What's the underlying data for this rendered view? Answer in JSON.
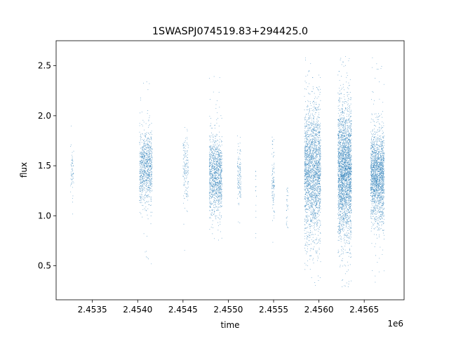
{
  "chart_data": {
    "type": "scatter",
    "title": "1SWASPJ074519.83+294425.0",
    "xlabel": "time",
    "ylabel": "flux",
    "x_offset_label": "1e6",
    "xlim": [
      2453100,
      2456940
    ],
    "ylim": [
      0.16,
      2.75
    ],
    "x_ticks": [
      2453500,
      2454000,
      2454500,
      2455000,
      2455500,
      2456000,
      2456500
    ],
    "x_tick_labels": [
      "2.4535",
      "2.4540",
      "2.4545",
      "2.4550",
      "2.4555",
      "2.4560",
      "2.4565"
    ],
    "y_ticks": [
      0.5,
      1.0,
      1.5,
      2.0,
      2.5
    ],
    "y_tick_labels": [
      "0.5",
      "1.0",
      "1.5",
      "2.0",
      "2.5"
    ],
    "grid": false,
    "marker_color": "#1f77b4",
    "seasons": [
      {
        "x_start": 2453260,
        "x_end": 2453295,
        "center": 1.45,
        "spread": 0.15,
        "min": 0.5,
        "max": 1.97,
        "density": 60
      },
      {
        "x_start": 2454020,
        "x_end": 2454160,
        "center": 1.48,
        "spread": 0.18,
        "min": 0.4,
        "max": 2.45,
        "density": 900
      },
      {
        "x_start": 2454500,
        "x_end": 2454560,
        "center": 1.45,
        "spread": 0.2,
        "min": 0.37,
        "max": 2.48,
        "density": 150
      },
      {
        "x_start": 2454790,
        "x_end": 2454930,
        "center": 1.4,
        "spread": 0.2,
        "min": 0.75,
        "max": 2.55,
        "density": 1100
      },
      {
        "x_start": 2455100,
        "x_end": 2455140,
        "center": 1.42,
        "spread": 0.15,
        "min": 0.85,
        "max": 1.83,
        "density": 120
      },
      {
        "x_start": 2455300,
        "x_end": 2455310,
        "center": 1.2,
        "spread": 0.2,
        "min": 0.7,
        "max": 1.45,
        "density": 15
      },
      {
        "x_start": 2455480,
        "x_end": 2455510,
        "center": 1.3,
        "spread": 0.2,
        "min": 0.55,
        "max": 1.9,
        "density": 100
      },
      {
        "x_start": 2455640,
        "x_end": 2455660,
        "center": 1.1,
        "spread": 0.15,
        "min": 0.85,
        "max": 1.3,
        "density": 30
      },
      {
        "x_start": 2455840,
        "x_end": 2456020,
        "center": 1.45,
        "spread": 0.32,
        "min": 0.3,
        "max": 2.6,
        "density": 2200
      },
      {
        "x_start": 2456210,
        "x_end": 2456360,
        "center": 1.45,
        "spread": 0.33,
        "min": 0.28,
        "max": 2.62,
        "density": 2600
      },
      {
        "x_start": 2456570,
        "x_end": 2456720,
        "center": 1.4,
        "spread": 0.22,
        "min": 0.33,
        "max": 2.6,
        "density": 1800
      }
    ]
  }
}
